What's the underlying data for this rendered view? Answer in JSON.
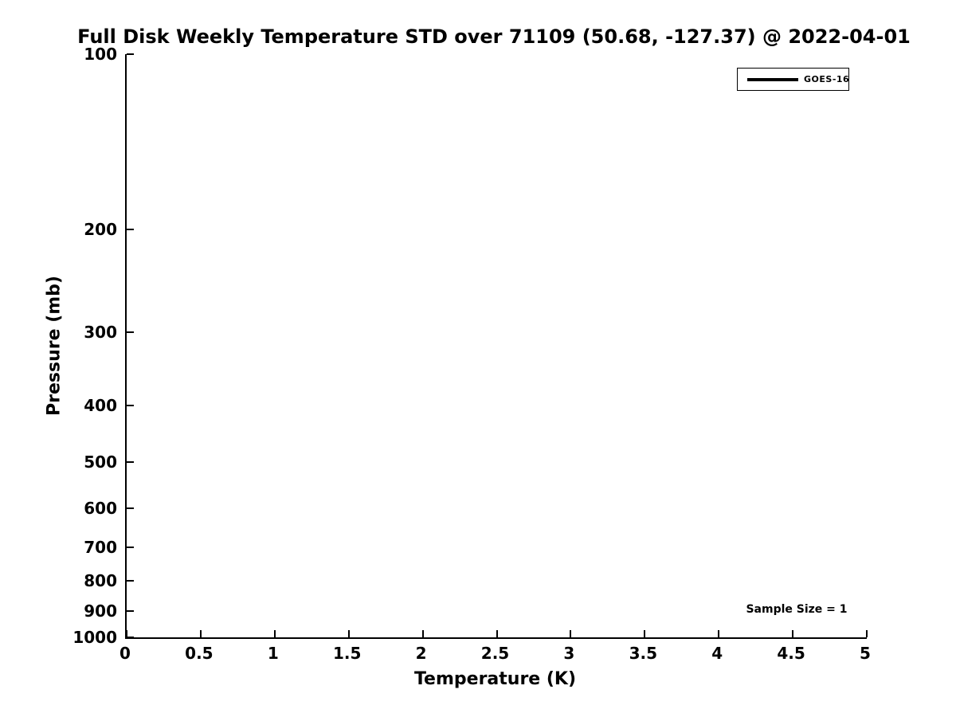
{
  "figure": {
    "title": "Full Disk Weekly Temperature STD over 71109 (50.68, -127.37) @ 2022-04-01",
    "xlabel": "Temperature (K)",
    "ylabel": "Pressure (mb)",
    "annotation": "Sample Size = 1",
    "legend": {
      "position": "top-right",
      "entries": [
        {
          "label": "GOES-16",
          "line_color": "#000000"
        }
      ]
    },
    "colors": {
      "background": "#ffffff",
      "axis": "#000000",
      "text": "#000000",
      "series_goes16": "#000000"
    }
  },
  "chart_data": {
    "type": "line",
    "title": "Full Disk Weekly Temperature STD over 71109 (50.68, -127.37) @ 2022-04-01",
    "xlabel": "Temperature (K)",
    "ylabel": "Pressure (mb)",
    "xlim": [
      0,
      5
    ],
    "ylim": [
      100,
      1000
    ],
    "x_scale": "linear",
    "y_scale": "log",
    "y_axis_reversed": true,
    "x_ticks": [
      0,
      0.5,
      1,
      1.5,
      2,
      2.5,
      3,
      3.5,
      4,
      4.5,
      5
    ],
    "x_tick_labels": [
      "0",
      "0.5",
      "1",
      "1.5",
      "2",
      "2.5",
      "3",
      "3.5",
      "4",
      "4.5",
      "5"
    ],
    "y_ticks": [
      100,
      200,
      300,
      400,
      500,
      600,
      700,
      800,
      900,
      1000
    ],
    "y_tick_labels": [
      "100",
      "200",
      "300",
      "400",
      "500",
      "600",
      "700",
      "800",
      "900",
      "1000"
    ],
    "tick_direction": "in",
    "grid": false,
    "legend_position": "top-right",
    "series": [
      {
        "name": "GOES-16",
        "color": "#000000",
        "x": [],
        "y": [],
        "note": "no data points visible in plot area; sample size = 1"
      }
    ],
    "annotations": [
      {
        "text": "Sample Size = 1",
        "location": "bottom-right"
      }
    ]
  }
}
